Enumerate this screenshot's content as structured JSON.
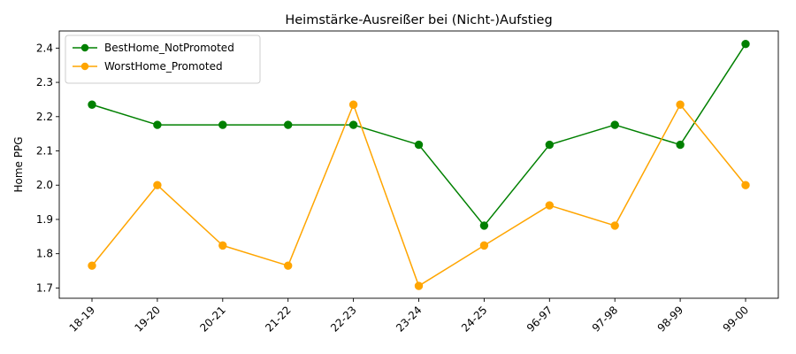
{
  "chart_data": {
    "type": "line",
    "title": "Heimstärke-Ausreißer bei (Nicht-)Aufstieg",
    "xlabel": "",
    "ylabel": "Home PPG",
    "categories": [
      "18-19",
      "19-20",
      "20-21",
      "21-22",
      "22-23",
      "23-24",
      "24-25",
      "96-97",
      "97-98",
      "98-99",
      "99-00"
    ],
    "ylim": [
      1.67,
      2.45
    ],
    "yticks": [
      1.7,
      1.8,
      1.9,
      2.0,
      2.1,
      2.2,
      2.3,
      2.4
    ],
    "ytick_labels": [
      "1.7",
      "1.8",
      "1.9",
      "2.0",
      "2.1",
      "2.2",
      "2.3",
      "2.4"
    ],
    "grid": false,
    "legend_position": "top-left",
    "series": [
      {
        "name": "BestHome_NotPromoted",
        "color": "#008000",
        "values": [
          2.235,
          2.176,
          2.176,
          2.176,
          2.176,
          2.118,
          1.882,
          2.118,
          2.176,
          2.118,
          2.412
        ]
      },
      {
        "name": "WorstHome_Promoted",
        "color": "#FFA500",
        "values": [
          1.765,
          2.0,
          1.824,
          1.765,
          2.235,
          1.706,
          1.824,
          1.941,
          1.882,
          2.235,
          2.0
        ]
      }
    ]
  }
}
